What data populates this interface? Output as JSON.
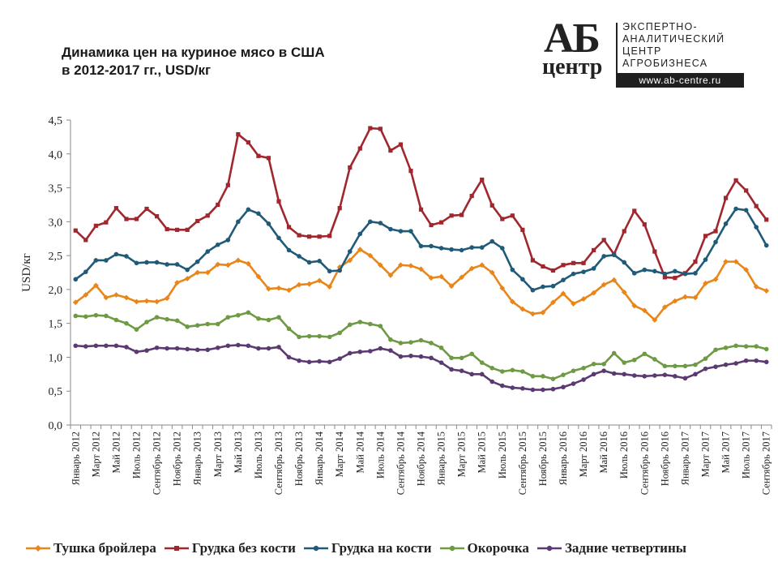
{
  "title_lines": [
    "Динамика цен на куриное мясо в США",
    "в 2012-2017 гг., USD/кг"
  ],
  "logo": {
    "mark_top": "АБ",
    "mark_bottom": "центр",
    "text_lines": [
      "ЭКСПЕРТНО-",
      "АНАЛИТИЧЕСКИЙ",
      "ЦЕНТР",
      "АГРОБИЗНЕСА"
    ],
    "url": "www.ab-centre.ru"
  },
  "chart_data": {
    "type": "line",
    "ylabel": "USD/кг",
    "ylim": [
      0,
      4.5
    ],
    "y_ticks": [
      "0,0",
      "0,5",
      "1,0",
      "1,5",
      "2,0",
      "2,5",
      "3,0",
      "3,5",
      "4,0",
      "4,5"
    ],
    "grid": false,
    "legend_position": "bottom",
    "x_tick_labels": [
      "Январь 2012",
      "Март 2012",
      "Май 2012",
      "Июль 2012",
      "Сентябрь 2012",
      "Ноябрь 2012",
      "Январь 2013",
      "Март 2013",
      "Май 2013",
      "Июль 2013",
      "Сентябрь 2013",
      "Ноябрь 2013",
      "Январь 2014",
      "Март 2014",
      "Май 2014",
      "Июль 2014",
      "Сентябрь 2014",
      "Ноябрь 2014",
      "Январь 2015",
      "Март 2015",
      "Май 2015",
      "Июль 2015",
      "Сентябрь 2015",
      "Ноябрь 2015",
      "Январь 2016",
      "Март 2016",
      "Май 2016",
      "Июль 2016",
      "Сентябрь 2016",
      "Ноябрь 2016",
      "Январь 2017",
      "Март 2017",
      "Май 2017",
      "Июль 2017",
      "Сентябрь 2017"
    ],
    "series": [
      {
        "name": "Тушка бройлера",
        "color": "#E8861A",
        "marker": "diamond",
        "values": [
          1.81,
          1.92,
          2.06,
          1.88,
          1.92,
          1.88,
          1.82,
          1.83,
          1.82,
          1.87,
          2.1,
          2.16,
          2.25,
          2.25,
          2.37,
          2.36,
          2.43,
          2.38,
          2.19,
          2.01,
          2.02,
          1.99,
          2.07,
          2.08,
          2.13,
          2.04,
          2.33,
          2.43,
          2.59,
          2.5,
          2.36,
          2.21,
          2.36,
          2.35,
          2.3,
          2.17,
          2.19,
          2.05,
          2.18,
          2.31,
          2.36,
          2.25,
          2.02,
          1.82,
          1.71,
          1.64,
          1.66,
          1.81,
          1.94,
          1.79,
          1.86,
          1.95,
          2.07,
          2.14,
          1.96,
          1.76,
          1.69,
          1.55,
          1.74,
          1.83,
          1.89,
          1.88,
          2.09,
          2.15,
          2.41,
          2.41,
          2.29,
          2.04,
          1.98
        ]
      },
      {
        "name": "Грудка без кости",
        "color": "#A0272E",
        "marker": "square",
        "values": [
          2.87,
          2.73,
          2.94,
          2.99,
          3.2,
          3.04,
          3.04,
          3.19,
          3.08,
          2.89,
          2.88,
          2.88,
          3.01,
          3.09,
          3.25,
          3.54,
          4.29,
          4.17,
          3.97,
          3.94,
          3.3,
          2.92,
          2.8,
          2.78,
          2.78,
          2.79,
          3.2,
          3.8,
          4.08,
          4.38,
          4.37,
          4.05,
          4.14,
          3.75,
          3.18,
          2.95,
          2.99,
          3.09,
          3.1,
          3.38,
          3.62,
          3.24,
          3.04,
          3.09,
          2.88,
          2.43,
          2.34,
          2.28,
          2.36,
          2.39,
          2.39,
          2.58,
          2.73,
          2.52,
          2.86,
          3.16,
          2.96,
          2.56,
          2.18,
          2.17,
          2.24,
          2.41,
          2.79,
          2.86,
          3.35,
          3.61,
          3.46,
          3.23,
          3.03
        ]
      },
      {
        "name": "Грудка на кости",
        "color": "#1F5B78",
        "marker": "circle",
        "values": [
          2.15,
          2.26,
          2.43,
          2.43,
          2.52,
          2.49,
          2.39,
          2.4,
          2.4,
          2.37,
          2.37,
          2.29,
          2.41,
          2.56,
          2.66,
          2.73,
          3.0,
          3.18,
          3.12,
          2.97,
          2.76,
          2.58,
          2.49,
          2.4,
          2.42,
          2.27,
          2.28,
          2.56,
          2.82,
          3.0,
          2.98,
          2.89,
          2.86,
          2.86,
          2.64,
          2.64,
          2.61,
          2.59,
          2.58,
          2.62,
          2.62,
          2.71,
          2.61,
          2.29,
          2.15,
          1.99,
          2.04,
          2.05,
          2.14,
          2.23,
          2.26,
          2.31,
          2.49,
          2.51,
          2.4,
          2.24,
          2.29,
          2.27,
          2.23,
          2.27,
          2.23,
          2.24,
          2.44,
          2.7,
          2.97,
          3.19,
          3.17,
          2.92,
          2.65
        ]
      },
      {
        "name": "Окорочка",
        "color": "#6E9A44",
        "marker": "circle",
        "values": [
          1.61,
          1.6,
          1.62,
          1.61,
          1.55,
          1.5,
          1.41,
          1.52,
          1.59,
          1.56,
          1.54,
          1.45,
          1.47,
          1.49,
          1.49,
          1.59,
          1.62,
          1.66,
          1.57,
          1.55,
          1.59,
          1.42,
          1.3,
          1.31,
          1.31,
          1.3,
          1.36,
          1.48,
          1.52,
          1.49,
          1.46,
          1.26,
          1.21,
          1.22,
          1.25,
          1.21,
          1.14,
          0.99,
          0.99,
          1.05,
          0.92,
          0.84,
          0.79,
          0.81,
          0.79,
          0.72,
          0.72,
          0.68,
          0.74,
          0.8,
          0.84,
          0.9,
          0.9,
          1.06,
          0.92,
          0.96,
          1.05,
          0.97,
          0.87,
          0.87,
          0.87,
          0.89,
          0.98,
          1.11,
          1.14,
          1.17,
          1.16,
          1.16,
          1.12
        ]
      },
      {
        "name": "Задние четвертины",
        "color": "#5B3A72",
        "marker": "circle",
        "values": [
          1.17,
          1.16,
          1.17,
          1.17,
          1.17,
          1.15,
          1.08,
          1.1,
          1.14,
          1.13,
          1.13,
          1.12,
          1.11,
          1.11,
          1.14,
          1.17,
          1.18,
          1.17,
          1.13,
          1.13,
          1.15,
          1.0,
          0.95,
          0.93,
          0.94,
          0.93,
          0.98,
          1.06,
          1.08,
          1.09,
          1.13,
          1.1,
          1.01,
          1.02,
          1.01,
          0.99,
          0.92,
          0.82,
          0.8,
          0.75,
          0.75,
          0.64,
          0.58,
          0.55,
          0.54,
          0.52,
          0.52,
          0.53,
          0.56,
          0.61,
          0.67,
          0.75,
          0.8,
          0.76,
          0.75,
          0.73,
          0.72,
          0.73,
          0.74,
          0.72,
          0.69,
          0.75,
          0.83,
          0.86,
          0.89,
          0.91,
          0.95,
          0.95,
          0.93
        ]
      }
    ]
  }
}
